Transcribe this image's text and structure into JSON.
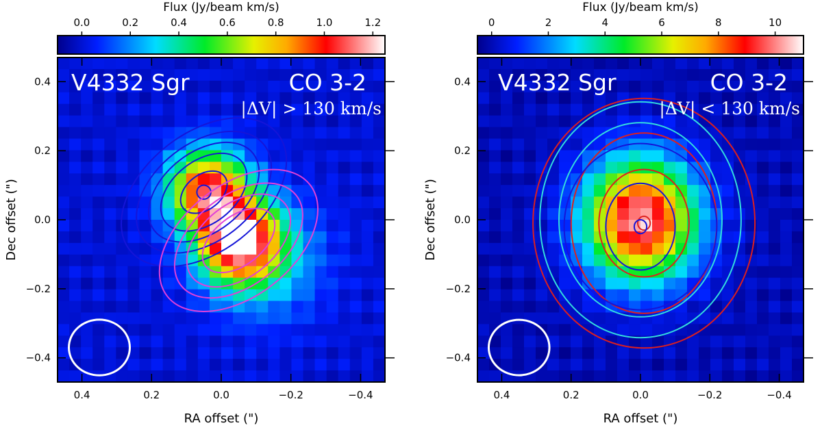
{
  "chart_data": [
    {
      "type": "heatmap",
      "object": "V4332 Sgr",
      "line": "CO 3-2",
      "velocity_cut": "|ΔV| > 130 km/s",
      "colorbar": {
        "label": "Flux (Jy/beam km/s)",
        "range": [
          -0.1,
          1.25
        ],
        "ticks": [
          0.0,
          0.2,
          0.4,
          0.6,
          0.8,
          1.0,
          1.2
        ],
        "tick_labels": [
          "0.0",
          "0.2",
          "0.4",
          "0.6",
          "0.8",
          "1.0",
          "1.2"
        ]
      },
      "xlabel": "RA offset (\")",
      "ylabel": "Dec offset (\")",
      "xlim": [
        0.47,
        -0.47
      ],
      "ylim": [
        -0.47,
        0.47
      ],
      "xticks": [
        0.4,
        0.2,
        0.0,
        -0.2,
        -0.4
      ],
      "xtick_labels": [
        "0.4",
        "0.2",
        "0.0",
        "−0.2",
        "−0.4"
      ],
      "yticks": [
        0.4,
        0.2,
        0.0,
        -0.2,
        -0.4
      ],
      "ytick_labels": [
        "0.4",
        "0.2",
        "0.0",
        "−0.2",
        "−0.4"
      ],
      "image_components": [
        {
          "x": 0.04,
          "y": 0.09,
          "peak": 1.0,
          "sx": 0.08,
          "sy": 0.08
        },
        {
          "x": -0.05,
          "y": -0.06,
          "peak": 1.15,
          "sx": 0.08,
          "sy": 0.08
        },
        {
          "x": -0.12,
          "y": -0.12,
          "peak": 0.3,
          "sx": 0.12,
          "sy": 0.12
        }
      ],
      "contour_sets": [
        {
          "name": "blue-shifted",
          "color": "#1515d8",
          "center": [
            0.05,
            0.08
          ],
          "rx": [
            0.27,
            0.22,
            0.18,
            0.14,
            0.075,
            0.02
          ],
          "ry": [
            0.17,
            0.14,
            0.115,
            0.09,
            0.05,
            0.02
          ],
          "angle_deg": -38
        },
        {
          "name": "red-shifted",
          "color": "#e040d8",
          "center": [
            -0.05,
            -0.06
          ],
          "rx": [
            0.26,
            0.21,
            0.17,
            0.12
          ],
          "ry": [
            0.16,
            0.13,
            0.105,
            0.07
          ],
          "angle_deg": -38
        }
      ],
      "beam": {
        "x": 0.35,
        "y": -0.37,
        "major": 0.175,
        "minor": 0.16,
        "color": "#ffffff"
      }
    },
    {
      "type": "heatmap",
      "object": "V4332 Sgr",
      "line": "CO 3-2",
      "velocity_cut": "|ΔV| < 130 km/s",
      "colorbar": {
        "label": "Flux (Jy/beam km/s)",
        "range": [
          -0.5,
          11.0
        ],
        "ticks": [
          0,
          2,
          4,
          6,
          8,
          10
        ],
        "tick_labels": [
          "0",
          "2",
          "4",
          "6",
          "8",
          "10"
        ]
      },
      "xlabel": "RA offset (\")",
      "ylabel": "Dec offset (\")",
      "xlim": [
        0.47,
        -0.47
      ],
      "ylim": [
        -0.47,
        0.47
      ],
      "xticks": [
        0.4,
        0.2,
        0.0,
        -0.2,
        -0.4
      ],
      "xtick_labels": [
        "0.4",
        "0.2",
        "0.0",
        "−0.2",
        "−0.4"
      ],
      "yticks": [
        0.4,
        0.2,
        0.0,
        -0.2,
        -0.4
      ],
      "ytick_labels": [
        "0.4",
        "0.2",
        "0.0",
        "−0.2",
        "−0.4"
      ],
      "image_components": [
        {
          "x": 0.0,
          "y": 0.0,
          "peak": 10.5,
          "sx": 0.11,
          "sy": 0.12
        }
      ],
      "contour_sets": [
        {
          "name": "red",
          "color": "#dd1f1f",
          "center": [
            -0.01,
            -0.01
          ],
          "rx": [
            0.32,
            0.21,
            0.13,
            0.018
          ],
          "ry": [
            0.36,
            0.26,
            0.155,
            0.02
          ],
          "angle_deg": 0
        },
        {
          "name": "blue",
          "color": "#1515d8",
          "center": [
            0.0,
            -0.02
          ],
          "rx": [
            0.22,
            0.1,
            0.018
          ],
          "ry": [
            0.24,
            0.125,
            0.02
          ],
          "angle_deg": 0
        },
        {
          "name": "cyan",
          "color": "#33dddd",
          "center": [
            0.0,
            0.0
          ],
          "rx": [
            0.29,
            0.235
          ],
          "ry": [
            0.34,
            0.28
          ],
          "angle_deg": 0
        }
      ],
      "beam": {
        "x": 0.35,
        "y": -0.37,
        "major": 0.175,
        "minor": 0.16,
        "color": "#ffffff"
      }
    }
  ]
}
